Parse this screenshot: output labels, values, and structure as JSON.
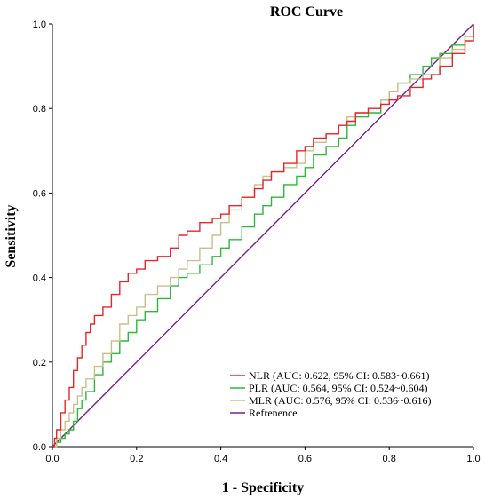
{
  "chart_data": {
    "type": "line",
    "title": "ROC Curve",
    "xlabel": "1 - Specificity",
    "ylabel": "Sensitivity",
    "xlim": [
      0,
      1
    ],
    "ylim": [
      0,
      1
    ],
    "xticks": [
      "0.0",
      "0.2",
      "0.4",
      "0.6",
      "0.8",
      "1.0"
    ],
    "yticks": [
      "0.0",
      "0.2",
      "0.4",
      "0.6",
      "0.8",
      "1.0"
    ],
    "legend_position": "bottom-right",
    "grid": false,
    "series": [
      {
        "name": "NLR (AUC: 0.622, 95% CI: 0.583~0.661)",
        "color": "#e8262a",
        "x": [
          0,
          0.005,
          0.01,
          0.02,
          0.03,
          0.04,
          0.05,
          0.06,
          0.07,
          0.08,
          0.09,
          0.1,
          0.12,
          0.14,
          0.16,
          0.18,
          0.2,
          0.22,
          0.25,
          0.28,
          0.3,
          0.32,
          0.35,
          0.38,
          0.4,
          0.42,
          0.45,
          0.48,
          0.5,
          0.52,
          0.55,
          0.58,
          0.6,
          0.62,
          0.65,
          0.68,
          0.7,
          0.72,
          0.75,
          0.78,
          0.8,
          0.82,
          0.85,
          0.88,
          0.9,
          0.92,
          0.95,
          0.98,
          1.0
        ],
        "y": [
          0,
          0.02,
          0.04,
          0.08,
          0.11,
          0.14,
          0.18,
          0.21,
          0.24,
          0.27,
          0.29,
          0.31,
          0.33,
          0.36,
          0.39,
          0.41,
          0.42,
          0.44,
          0.45,
          0.47,
          0.5,
          0.51,
          0.53,
          0.54,
          0.55,
          0.57,
          0.59,
          0.61,
          0.63,
          0.65,
          0.67,
          0.7,
          0.71,
          0.73,
          0.74,
          0.76,
          0.77,
          0.79,
          0.8,
          0.81,
          0.82,
          0.83,
          0.85,
          0.87,
          0.88,
          0.9,
          0.93,
          0.96,
          1.0
        ]
      },
      {
        "name": "PLR (AUC: 0.564, 95% CI: 0.524~0.604)",
        "color": "#2eb73a",
        "x": [
          0,
          0.01,
          0.02,
          0.03,
          0.04,
          0.05,
          0.06,
          0.07,
          0.08,
          0.1,
          0.12,
          0.14,
          0.16,
          0.18,
          0.2,
          0.22,
          0.25,
          0.28,
          0.3,
          0.32,
          0.35,
          0.38,
          0.4,
          0.42,
          0.45,
          0.48,
          0.5,
          0.52,
          0.55,
          0.58,
          0.6,
          0.62,
          0.65,
          0.68,
          0.7,
          0.72,
          0.75,
          0.78,
          0.8,
          0.82,
          0.85,
          0.88,
          0.9,
          0.92,
          0.95,
          0.98,
          1.0
        ],
        "y": [
          0,
          0.01,
          0.02,
          0.03,
          0.04,
          0.06,
          0.09,
          0.11,
          0.13,
          0.17,
          0.2,
          0.22,
          0.25,
          0.27,
          0.3,
          0.32,
          0.35,
          0.38,
          0.4,
          0.41,
          0.43,
          0.45,
          0.47,
          0.49,
          0.52,
          0.55,
          0.57,
          0.59,
          0.62,
          0.64,
          0.66,
          0.69,
          0.71,
          0.73,
          0.76,
          0.78,
          0.79,
          0.82,
          0.84,
          0.86,
          0.88,
          0.9,
          0.92,
          0.93,
          0.95,
          0.97,
          1.0
        ]
      },
      {
        "name": "MLR (AUC: 0.576, 95% CI: 0.536~0.616)",
        "color": "#c8c08a",
        "x": [
          0,
          0.01,
          0.02,
          0.03,
          0.04,
          0.05,
          0.06,
          0.07,
          0.08,
          0.1,
          0.12,
          0.14,
          0.16,
          0.18,
          0.2,
          0.22,
          0.25,
          0.28,
          0.3,
          0.32,
          0.35,
          0.38,
          0.4,
          0.42,
          0.45,
          0.48,
          0.5,
          0.52,
          0.55,
          0.58,
          0.6,
          0.62,
          0.65,
          0.68,
          0.7,
          0.72,
          0.75,
          0.78,
          0.8,
          0.82,
          0.85,
          0.88,
          0.9,
          0.92,
          0.95,
          0.98,
          1.0
        ],
        "y": [
          0,
          0.02,
          0.04,
          0.06,
          0.08,
          0.1,
          0.12,
          0.14,
          0.16,
          0.19,
          0.22,
          0.25,
          0.29,
          0.31,
          0.33,
          0.36,
          0.38,
          0.4,
          0.42,
          0.44,
          0.47,
          0.5,
          0.53,
          0.56,
          0.59,
          0.62,
          0.64,
          0.65,
          0.66,
          0.67,
          0.7,
          0.72,
          0.74,
          0.76,
          0.78,
          0.79,
          0.8,
          0.82,
          0.84,
          0.86,
          0.87,
          0.88,
          0.88,
          0.92,
          0.94,
          0.97,
          1.0
        ]
      },
      {
        "name": "Refrenence",
        "color": "#7a1f8e",
        "x": [
          0,
          1
        ],
        "y": [
          0,
          1
        ]
      }
    ]
  }
}
